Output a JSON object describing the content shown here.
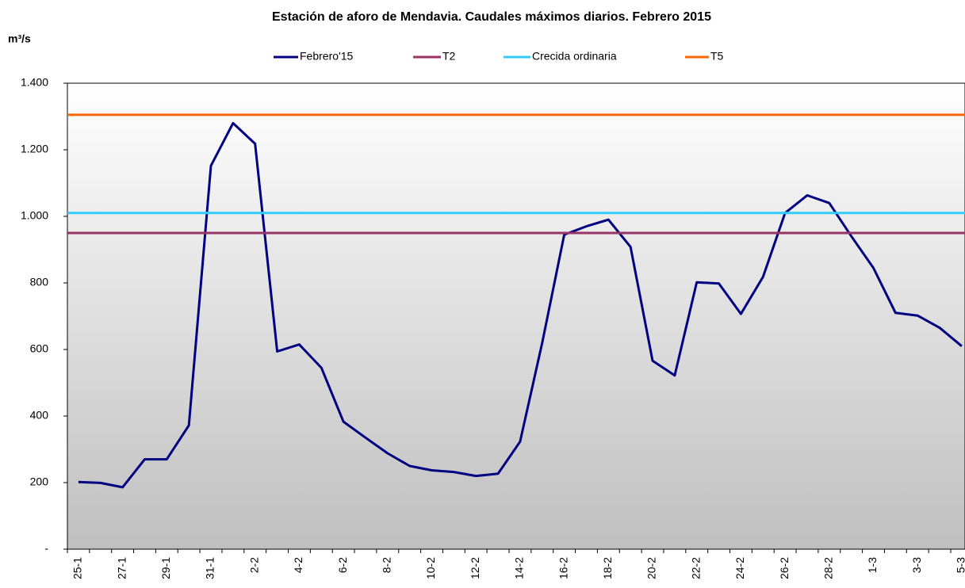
{
  "chart_data": {
    "type": "line",
    "title": "Estación de aforo de Mendavia. Caudales máximos diarios. Febrero 2015",
    "y_label": "m³/s",
    "categories": [
      "25-1",
      null,
      "27-1",
      null,
      "29-1",
      null,
      "31-1",
      null,
      "2-2",
      null,
      "4-2",
      null,
      "6-2",
      null,
      "8-2",
      null,
      "10-2",
      null,
      "12-2",
      null,
      "14-2",
      null,
      "16-2",
      null,
      "18-2",
      null,
      "20-2",
      null,
      "22-2",
      null,
      "24-2",
      null,
      "26-2",
      null,
      "28-2",
      null,
      "1-3",
      null,
      "3-3",
      null,
      "5-3"
    ],
    "series": [
      {
        "name": "Febrero'15",
        "color": "#000080",
        "values": [
          202,
          199,
          186,
          270,
          270,
          372,
          1152,
          1280,
          1218,
          594,
          615,
          545,
          383,
          335,
          288,
          250,
          237,
          232,
          220,
          227,
          323,
          620,
          945,
          970,
          990,
          908,
          566,
          522,
          802,
          798,
          707,
          818,
          1010,
          1063,
          1040,
          940,
          845,
          710,
          702,
          665,
          610
        ]
      },
      {
        "name": "T2",
        "color": "#993366",
        "values": [
          950,
          950,
          950,
          950,
          950,
          950,
          950,
          950,
          950,
          950,
          950,
          950,
          950,
          950,
          950,
          950,
          950,
          950,
          950,
          950,
          950,
          950,
          950,
          950,
          950,
          950,
          950,
          950,
          950,
          950,
          950,
          950,
          950,
          950,
          950,
          950,
          950,
          950,
          950,
          950,
          950
        ]
      },
      {
        "name": "Crecida ordinaria",
        "color": "#33ccff",
        "values": [
          1010,
          1010,
          1010,
          1010,
          1010,
          1010,
          1010,
          1010,
          1010,
          1010,
          1010,
          1010,
          1010,
          1010,
          1010,
          1010,
          1010,
          1010,
          1010,
          1010,
          1010,
          1010,
          1010,
          1010,
          1010,
          1010,
          1010,
          1010,
          1010,
          1010,
          1010,
          1010,
          1010,
          1010,
          1010,
          1010,
          1010,
          1010,
          1010,
          1010,
          1010
        ]
      },
      {
        "name": "T5",
        "color": "#ff6600",
        "values": [
          1305,
          1305,
          1305,
          1305,
          1305,
          1305,
          1305,
          1305,
          1305,
          1305,
          1305,
          1305,
          1305,
          1305,
          1305,
          1305,
          1305,
          1305,
          1305,
          1305,
          1305,
          1305,
          1305,
          1305,
          1305,
          1305,
          1305,
          1305,
          1305,
          1305,
          1305,
          1305,
          1305,
          1305,
          1305,
          1305,
          1305,
          1305,
          1305,
          1305,
          1305
        ]
      }
    ],
    "ylim": [
      0,
      1400
    ],
    "yticks": [
      {
        "value": 0,
        "label": "-"
      },
      200,
      400,
      600,
      800,
      {
        "value": 1000,
        "label": "1.000"
      },
      {
        "value": 1200,
        "label": "1.200"
      },
      {
        "value": 1400,
        "label": "1.400"
      }
    ],
    "legend": "top"
  }
}
